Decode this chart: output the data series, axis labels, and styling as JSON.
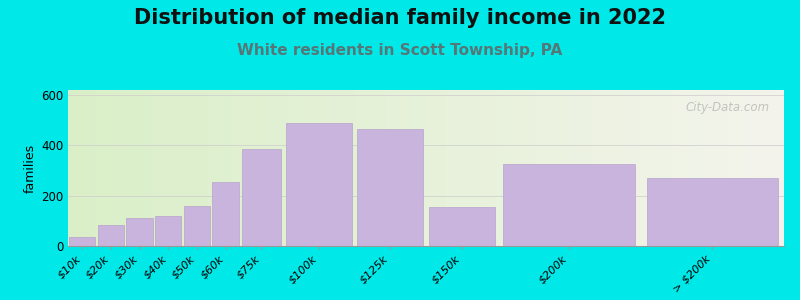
{
  "title": "Distribution of median family income in 2022",
  "subtitle": "White residents in Scott Township, PA",
  "categories": [
    "$10k",
    "$20k",
    "$30k",
    "$40k",
    "$50k",
    "$60k",
    "$75k",
    "$100k",
    "$125k",
    "$150k",
    "$200k",
    "> $200k"
  ],
  "bar_lefts": [
    0,
    10,
    20,
    30,
    40,
    50,
    60,
    75,
    100,
    125,
    150,
    200
  ],
  "bar_widths": [
    10,
    10,
    10,
    10,
    10,
    10,
    15,
    25,
    25,
    25,
    50,
    50
  ],
  "values": [
    35,
    85,
    110,
    120,
    160,
    255,
    385,
    490,
    465,
    155,
    325,
    270
  ],
  "bar_color": "#c8b4dc",
  "bar_edge_color": "#b8a4cc",
  "ylabel": "families",
  "ylim": [
    0,
    620
  ],
  "yticks": [
    0,
    200,
    400,
    600
  ],
  "xlim": [
    0,
    250
  ],
  "background_outer": "#00e8e8",
  "bg_left_color": "#daefc8",
  "bg_right_color": "#f4f4ec",
  "title_fontsize": 15,
  "subtitle_fontsize": 11,
  "subtitle_color": "#557777",
  "watermark": "City-Data.com",
  "tick_label_positions": [
    5,
    15,
    25,
    35,
    45,
    55,
    67.5,
    87.5,
    112.5,
    137.5,
    175,
    225
  ],
  "tick_label_rotation": 45
}
